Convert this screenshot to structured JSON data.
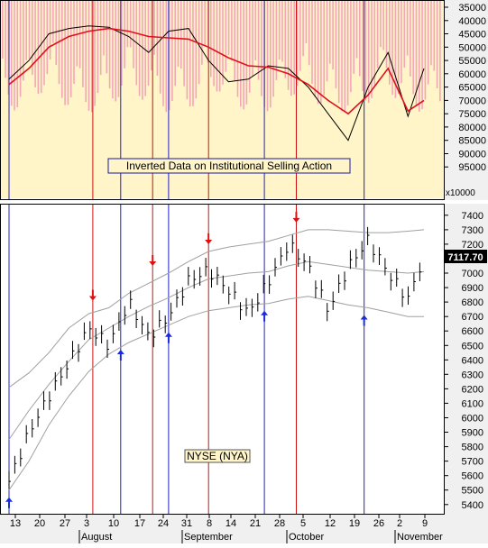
{
  "chart_data": [
    {
      "type": "bar",
      "panel": "top",
      "annotation": "Inverted Data on Institutional Selling Action",
      "y_scale_note": "x10000",
      "y_inverted": true,
      "ylim": [
        35000,
        100000
      ],
      "yticks": [
        "35000",
        "40000",
        "45000",
        "50000",
        "55000",
        "60000",
        "65000",
        "70000",
        "75000",
        "80000",
        "85000",
        "90000",
        "95000"
      ],
      "background_color": "#fff5c8",
      "bar_color": "#f3a6b8",
      "fast_line_color": "#000000",
      "slow_line_color": "#e0101c",
      "series": [
        {
          "name": "selling-bars",
          "values": [
            30000,
            30000,
            30000,
            30000,
            30000,
            30000,
            30000,
            30000,
            30000,
            30000,
            30000,
            30000,
            30000,
            30000,
            30000,
            30000,
            30000,
            30000,
            30000,
            30000,
            30000,
            30000,
            30000,
            30000,
            30000,
            30000,
            30000,
            30000,
            30000,
            30000,
            30000,
            30000,
            30000,
            30000,
            30000,
            30000,
            30000,
            30000,
            30000,
            30000,
            30000,
            30000,
            30000,
            30000,
            30000,
            30000,
            30000,
            30000,
            30000,
            30000,
            30000,
            30000,
            30000,
            30000,
            30000,
            30000,
            30000,
            30000,
            30000,
            30000,
            30000,
            30000,
            30000,
            30000,
            30000,
            30000,
            30000,
            30000,
            30000,
            30000,
            30000,
            30000,
            30000,
            30000,
            30000,
            30000,
            30000,
            30000,
            30000,
            30000,
            30000,
            30000,
            30000,
            30000,
            30000,
            30000,
            30000,
            30000,
            30000,
            30000,
            30000,
            30000,
            30000,
            30000,
            30000,
            30000,
            30000,
            30000,
            30000,
            30000,
            30000,
            30000,
            30000,
            30000,
            30000,
            30000,
            30000,
            30000,
            30000,
            30000,
            30000,
            30000,
            30000,
            30000,
            30000,
            30000,
            30000,
            30000,
            30000,
            30000,
            30000,
            30000,
            30000,
            30000,
            30000,
            30000,
            30000,
            30000,
            30000,
            30000,
            30000,
            30000,
            30000,
            30000,
            30000,
            30000,
            30000,
            30000,
            30000,
            30000,
            30000,
            30000,
            30000,
            30000,
            30000,
            30000,
            30000,
            30000
          ]
        },
        {
          "name": "fast",
          "x": [
            0,
            5,
            10,
            15,
            20,
            25,
            30,
            35,
            40,
            45,
            50,
            55,
            60,
            65,
            70,
            75,
            80,
            85,
            90,
            95,
            100,
            104
          ],
          "values": [
            62000,
            55000,
            45000,
            43000,
            42000,
            42500,
            46000,
            52000,
            44000,
            43000,
            55000,
            63000,
            62000,
            57000,
            58000,
            65000,
            75000,
            85000,
            65000,
            52000,
            76000,
            58000
          ]
        },
        {
          "name": "slow",
          "x": [
            0,
            5,
            10,
            15,
            20,
            25,
            30,
            35,
            40,
            45,
            50,
            55,
            60,
            65,
            70,
            75,
            80,
            85,
            90,
            95,
            100,
            104
          ],
          "values": [
            64000,
            58000,
            50000,
            46000,
            44000,
            43000,
            44000,
            46000,
            46500,
            47000,
            50000,
            54000,
            57000,
            57500,
            60000,
            64000,
            70000,
            75000,
            68000,
            58000,
            74000,
            70000
          ]
        }
      ]
    },
    {
      "type": "bar",
      "panel": "bottom",
      "annotation": "NYSE (NYA)",
      "ylim": [
        5330,
        7480
      ],
      "yticks": [
        "5400",
        "5500",
        "5600",
        "5700",
        "5800",
        "5900",
        "6000",
        "6100",
        "6200",
        "6300",
        "6400",
        "6500",
        "6600",
        "6700",
        "6800",
        "6900",
        "7000",
        "7100",
        "7200",
        "7300",
        "7400"
      ],
      "last_value": "7117.70",
      "x_labels": [
        "13",
        "20",
        "27",
        "3",
        "10",
        "17",
        "24",
        "31",
        "8",
        "14",
        "21",
        "28",
        "5",
        "12",
        "19",
        "26",
        "2",
        "9"
      ],
      "month_labels": [
        "August",
        "September",
        "October",
        "November"
      ],
      "x_days": [
        0,
        5,
        10,
        15,
        20,
        25,
        30,
        35,
        40,
        45,
        50,
        55,
        60,
        65,
        70,
        75,
        80,
        85,
        90,
        95,
        100,
        104
      ],
      "close": [
        5560,
        5900,
        6150,
        6380,
        6620,
        6500,
        6800,
        6560,
        6700,
        6950,
        7020,
        6880,
        6720,
        6940,
        7200,
        7050,
        6740,
        7040,
        7230,
        7000,
        6820,
        7117
      ],
      "upper_band": [
        6210,
        6310,
        6450,
        6620,
        6720,
        6760,
        6860,
        6930,
        7000,
        7080,
        7150,
        7180,
        7200,
        7220,
        7260,
        7300,
        7300,
        7290,
        7280,
        7280,
        7290,
        7300
      ],
      "mid_band": [
        5850,
        6050,
        6230,
        6390,
        6540,
        6620,
        6700,
        6770,
        6830,
        6900,
        6960,
        6980,
        7000,
        7010,
        7050,
        7080,
        7060,
        7040,
        7020,
        7010,
        7000,
        7010
      ],
      "lower_band": [
        5500,
        5700,
        5950,
        6150,
        6320,
        6440,
        6520,
        6580,
        6640,
        6700,
        6740,
        6760,
        6780,
        6790,
        6820,
        6840,
        6810,
        6780,
        6760,
        6730,
        6700,
        6700
      ],
      "buy_signal_days": [
        0,
        28,
        40,
        64,
        89
      ],
      "sell_signal_days": [
        21,
        36,
        50,
        72
      ],
      "blue_line_days": [
        0,
        28,
        40,
        64,
        89
      ],
      "red_line_days": [
        21,
        36,
        50,
        72
      ]
    }
  ]
}
